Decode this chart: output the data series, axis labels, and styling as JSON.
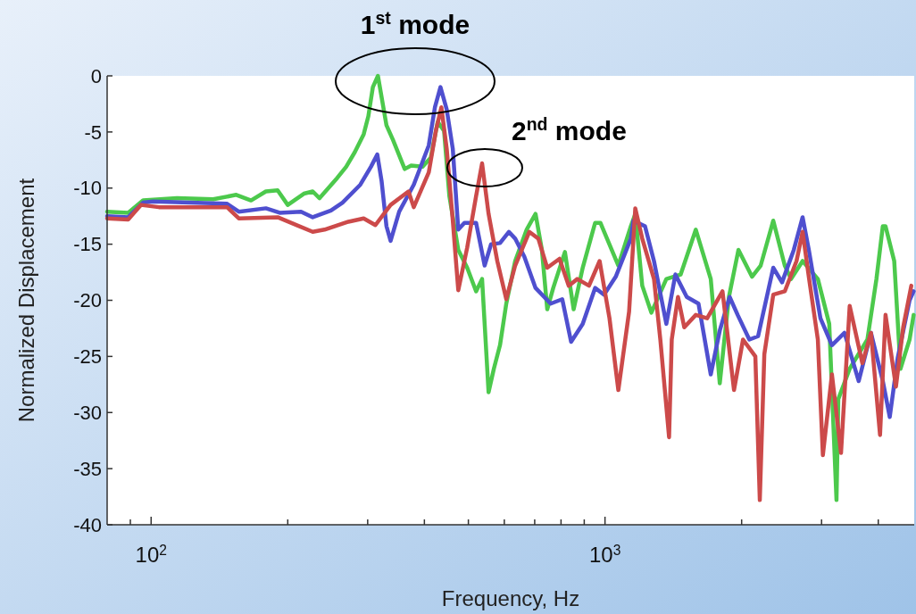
{
  "chart_data": {
    "type": "line",
    "xlabel": "Frequency, Hz",
    "ylabel": "Normalized Displacement",
    "log": "x",
    "grid": false,
    "marker": "none",
    "line_style": "solid",
    "xlim": [
      80,
      4800
    ],
    "ylim": [
      -40,
      0
    ],
    "xticks": [
      {
        "value": 90,
        "label": null
      },
      {
        "value": 100,
        "label": "10$^{2}$"
      },
      {
        "value": 200,
        "label": null
      },
      {
        "value": 300,
        "label": null
      },
      {
        "value": 400,
        "label": null
      },
      {
        "value": 500,
        "label": null
      },
      {
        "value": 600,
        "label": null
      },
      {
        "value": 700,
        "label": null
      },
      {
        "value": 800,
        "label": null
      },
      {
        "value": 900,
        "label": null
      },
      {
        "value": 1000,
        "label": "10$^{3}$"
      },
      {
        "value": 2000,
        "label": null
      },
      {
        "value": 3000,
        "label": null
      },
      {
        "value": 4000,
        "label": null
      }
    ],
    "yticks": [
      0,
      -5,
      -10,
      -15,
      -20,
      -25,
      -30,
      -35,
      -40
    ],
    "annotations": [
      "1$^{st}$ mode",
      "2$^{nd}$ mode"
    ],
    "series": [
      {
        "color": "#4cc94c",
        "x": [
          80,
          89,
          96,
          114,
          137,
          154,
          166,
          179,
          190,
          200,
          217,
          227,
          235,
          257,
          269,
          281,
          294,
          301,
          308,
          316,
          330,
          341,
          362,
          374,
          396,
          413,
          428,
          442,
          454,
          475,
          497,
          520,
          536,
          554,
          569,
          587,
          606,
          634,
          672,
          703,
          726,
          746,
          769,
          816,
          853,
          893,
          951,
          977,
          1070,
          1140,
          1166,
          1208,
          1265,
          1365,
          1468,
          1585,
          1710,
          1790,
          1875,
          1968,
          2108,
          2203,
          2348,
          2489,
          2570,
          2725,
          2944,
          3119,
          3236,
          3266,
          3460,
          3785,
          3963,
          4093,
          4150,
          4337,
          4477,
          4688,
          4786
        ],
        "values": [
          -12.1,
          -12.2,
          -11.1,
          -10.9,
          -11,
          -10.6,
          -11.1,
          -10.3,
          -10.2,
          -11.5,
          -10.5,
          -10.3,
          -10.9,
          -9.1,
          -8.1,
          -6.8,
          -5.2,
          -3.6,
          -1.0,
          0,
          -4.4,
          -5.7,
          -8.3,
          -8.0,
          -8.1,
          -7.3,
          -4.1,
          -4.9,
          -10.7,
          -15.5,
          -17.1,
          -19.2,
          -18.1,
          -28.2,
          -26.1,
          -24.0,
          -20.3,
          -16.5,
          -13.7,
          -12.3,
          -15.5,
          -20.8,
          -18.9,
          -15.7,
          -20.8,
          -17.1,
          -13.1,
          -13.1,
          -16.9,
          -13.4,
          -12.3,
          -18.7,
          -21.1,
          -18.1,
          -17.7,
          -13.7,
          -18.1,
          -27.4,
          -19.7,
          -15.5,
          -17.9,
          -16.9,
          -12.9,
          -16.9,
          -18.1,
          -16.5,
          -18.1,
          -22.1,
          -37.8,
          -28.8,
          -26.1,
          -23.5,
          -18.1,
          -13.4,
          -13.4,
          -16.5,
          -26.1,
          -23.5,
          -21.3
        ]
      },
      {
        "color": "#4f4fcf",
        "x": [
          80,
          89,
          96,
          101,
          147,
          156,
          179,
          192,
          214,
          227,
          249,
          264,
          289,
          305,
          315,
          322,
          330,
          337,
          352,
          379,
          409,
          422,
          434,
          448,
          462,
          475,
          490,
          520,
          543,
          561,
          587,
          614,
          634,
          664,
          703,
          759,
          805,
          842,
          893,
          951,
          995,
          1056,
          1140,
          1155,
          1225,
          1282,
          1365,
          1429,
          1514,
          1607,
          1710,
          1790,
          1882,
          1960,
          2080,
          2174,
          2348,
          2455,
          2606,
          2725,
          2812,
          2983,
          3162,
          3370,
          3622,
          3855,
          4093,
          4240,
          4416,
          4688,
          4786
        ],
        "values": [
          -12.5,
          -12.6,
          -11.3,
          -11.2,
          -11.4,
          -12.1,
          -11.8,
          -12.2,
          -12.1,
          -12.6,
          -12,
          -11.3,
          -9.7,
          -8.1,
          -7.0,
          -9.4,
          -13.4,
          -14.7,
          -12.1,
          -9.7,
          -6.2,
          -2.8,
          -1.0,
          -3.0,
          -6.5,
          -13.7,
          -13.1,
          -13.1,
          -16.9,
          -15.0,
          -14.9,
          -13.9,
          -14.5,
          -16.1,
          -18.9,
          -20.3,
          -19.9,
          -23.7,
          -22.1,
          -18.9,
          -19.5,
          -17.9,
          -14.5,
          -12.9,
          -13.4,
          -16.5,
          -22.1,
          -17.7,
          -19.7,
          -20.3,
          -26.6,
          -22.7,
          -19.7,
          -21.3,
          -23.5,
          -23.2,
          -17.1,
          -18.4,
          -15.5,
          -12.6,
          -15.5,
          -21.6,
          -24.0,
          -22.9,
          -27.2,
          -22.9,
          -27.2,
          -30.4,
          -25.1,
          -20.0,
          -19.2
        ]
      },
      {
        "color": "#cc4a4a",
        "x": [
          80,
          89,
          95,
          104,
          147,
          156,
          190,
          227,
          241,
          272,
          294,
          312,
          337,
          369,
          379,
          409,
          424,
          436,
          448,
          462,
          475,
          497,
          520,
          536,
          554,
          579,
          606,
          634,
          681,
          713,
          746,
          794,
          832,
          869,
          922,
          973,
          1023,
          1070,
          1130,
          1166,
          1208,
          1282,
          1324,
          1384,
          1403,
          1448,
          1495,
          1585,
          1679,
          1815,
          1924,
          2014,
          2144,
          2193,
          2244,
          2348,
          2489,
          2642,
          2725,
          2812,
          2944,
          3020,
          3162,
          3311,
          3460,
          3690,
          3855,
          4036,
          4150,
          4375,
          4539,
          4730
        ],
        "values": [
          -12.7,
          -12.8,
          -11.5,
          -11.7,
          -11.7,
          -12.7,
          -12.6,
          -13.9,
          -13.7,
          -13.0,
          -12.7,
          -13.3,
          -11.5,
          -10.3,
          -11.7,
          -8.6,
          -4.9,
          -2.8,
          -6.5,
          -12.9,
          -19.1,
          -15.3,
          -10.7,
          -7.8,
          -12.3,
          -16.5,
          -19.9,
          -16.9,
          -13.9,
          -14.5,
          -17.1,
          -16.3,
          -18.7,
          -18.1,
          -18.7,
          -16.5,
          -21.6,
          -28.0,
          -21,
          -11.8,
          -14.5,
          -18.1,
          -23.5,
          -32.2,
          -23.5,
          -19.7,
          -22.4,
          -21.3,
          -21.6,
          -19.2,
          -28.0,
          -23.5,
          -25.0,
          -37.8,
          -24.8,
          -19.5,
          -19.2,
          -16.5,
          -13.9,
          -17.9,
          -23.5,
          -33.8,
          -26.6,
          -33.6,
          -20.5,
          -25.6,
          -22.9,
          -32.0,
          -21.3,
          -27.7,
          -22.4,
          -18.7
        ]
      }
    ]
  }
}
